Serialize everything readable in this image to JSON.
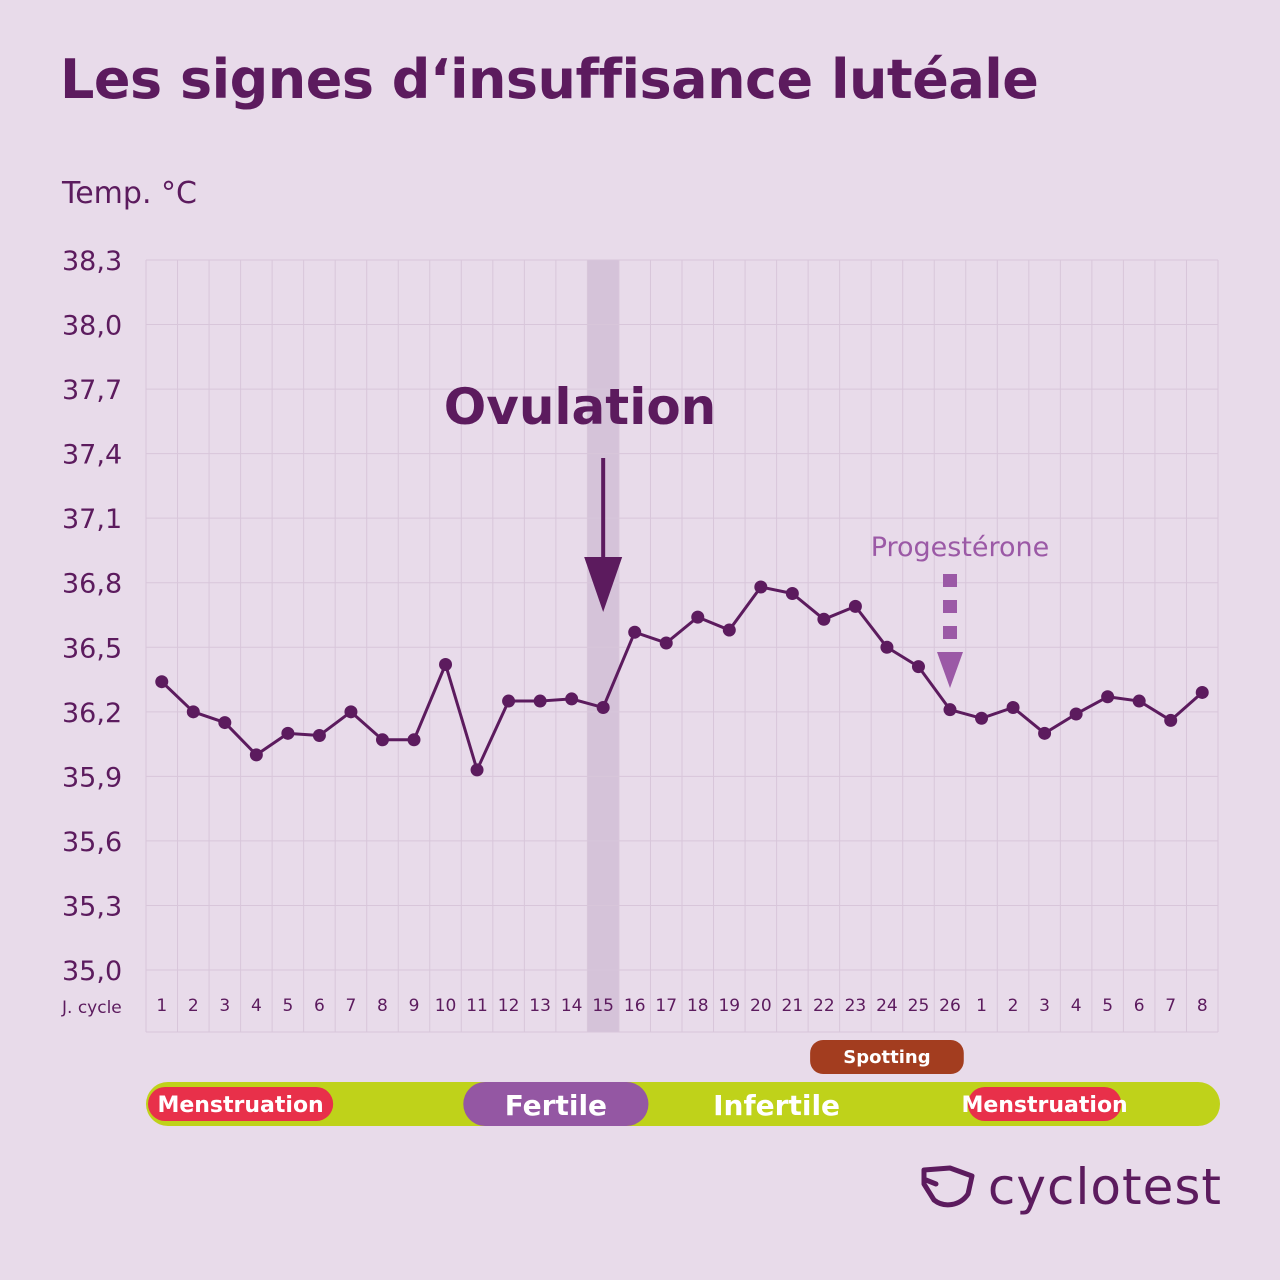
{
  "title": "Les signes d‘insuffisance lutéale",
  "brand": "cyclotest",
  "colors": {
    "background": "#e8dbea",
    "primary": "#5c1b5e",
    "grid": "#d8c6da",
    "ovulation_band": "#d5c3d9",
    "progesterone": "#9b59a6",
    "phase_bar": "#bfd21a",
    "menstruation": "#e8304a",
    "fertile": "#9457a3",
    "spotting": "#a33d1f"
  },
  "chart_data": {
    "type": "line",
    "title": "Les signes d‘insuffisance lutéale",
    "ylabel": "Temp. °C",
    "xlabel": "J. cycle",
    "ylim": [
      35.0,
      38.3
    ],
    "yticks": [
      "38,3",
      "38,0",
      "37,7",
      "37,4",
      "37,1",
      "36,8",
      "36,5",
      "36,2",
      "35,9",
      "35,6",
      "35,3",
      "35,0"
    ],
    "ytick_values": [
      38.3,
      38.0,
      37.7,
      37.4,
      37.1,
      36.8,
      36.5,
      36.2,
      35.9,
      35.6,
      35.3,
      35.0
    ],
    "categories": [
      "1",
      "2",
      "3",
      "4",
      "5",
      "6",
      "7",
      "8",
      "9",
      "10",
      "11",
      "12",
      "13",
      "14",
      "15",
      "16",
      "17",
      "18",
      "19",
      "20",
      "21",
      "22",
      "23",
      "24",
      "25",
      "26",
      "1",
      "2",
      "3",
      "4",
      "5",
      "6",
      "7",
      "8"
    ],
    "values": [
      36.34,
      36.2,
      36.15,
      36.0,
      36.1,
      36.09,
      36.2,
      36.07,
      36.07,
      36.42,
      35.93,
      36.25,
      36.25,
      36.26,
      36.22,
      36.57,
      36.52,
      36.64,
      36.58,
      36.78,
      36.75,
      36.63,
      36.69,
      36.5,
      36.41,
      36.21,
      36.17,
      36.22,
      36.1,
      36.19,
      36.27,
      36.25,
      36.16,
      36.29
    ],
    "grid": true,
    "annotations": {
      "ovulation": {
        "label": "Ovulation",
        "day_index": 14
      },
      "progesterone": {
        "label": "Progestérone",
        "day_index": 25
      }
    },
    "spotting": {
      "label": "Spotting",
      "start_index": 21,
      "end_index": 25
    },
    "phases": [
      {
        "label": "Menstruation",
        "type": "menstruation",
        "start_index": 0,
        "end_index": 5
      },
      {
        "label": "Fertile",
        "type": "fertile",
        "start_index": 10,
        "end_index": 15
      },
      {
        "label": "Infertile",
        "type": "infertile",
        "start_index": 16,
        "end_index": 23
      },
      {
        "label": "Menstruation",
        "type": "menstruation",
        "start_index": 26,
        "end_index": 30
      }
    ]
  }
}
